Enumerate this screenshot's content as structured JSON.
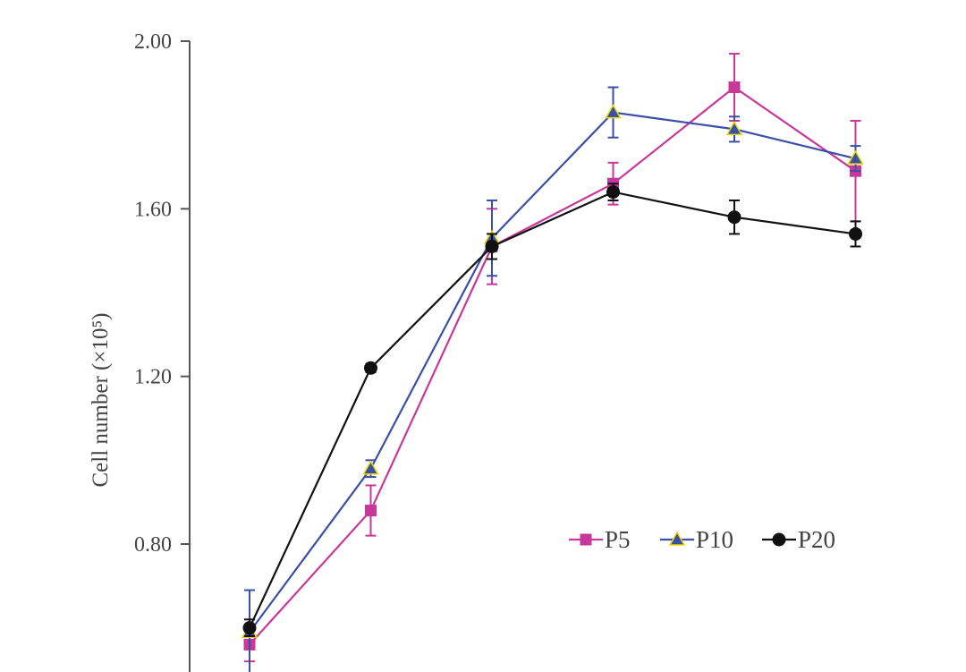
{
  "chart_data": {
    "type": "line",
    "title": "",
    "xlabel": "",
    "ylabel": "Cell number (×10⁵)",
    "ylim": [
      0.52,
      2.0
    ],
    "yticks": [
      "2.00",
      "1.60",
      "1.20",
      "0.80"
    ],
    "ytick_values": [
      2.0,
      1.6,
      1.2,
      0.8
    ],
    "x": [
      1,
      2,
      3,
      4,
      5,
      6
    ],
    "grid": false,
    "legend_position": "right-center",
    "series": [
      {
        "name": "P5",
        "color": "#c8389a",
        "marker": "square",
        "values": [
          0.56,
          0.88,
          1.51,
          1.66,
          1.89,
          1.69
        ],
        "errors": [
          0.04,
          0.06,
          0.09,
          0.05,
          0.08,
          0.12
        ]
      },
      {
        "name": "P10",
        "color": "#3a4fa6",
        "marker": "triangle",
        "values": [
          0.59,
          0.98,
          1.53,
          1.83,
          1.79,
          1.72
        ],
        "errors": [
          0.1,
          0.02,
          0.09,
          0.06,
          0.03,
          0.03
        ]
      },
      {
        "name": "P20",
        "color": "#111111",
        "marker": "circle",
        "values": [
          0.6,
          1.22,
          1.51,
          1.64,
          1.58,
          1.54
        ],
        "errors": [
          0.02,
          0.01,
          0.03,
          0.02,
          0.04,
          0.03
        ]
      }
    ]
  }
}
